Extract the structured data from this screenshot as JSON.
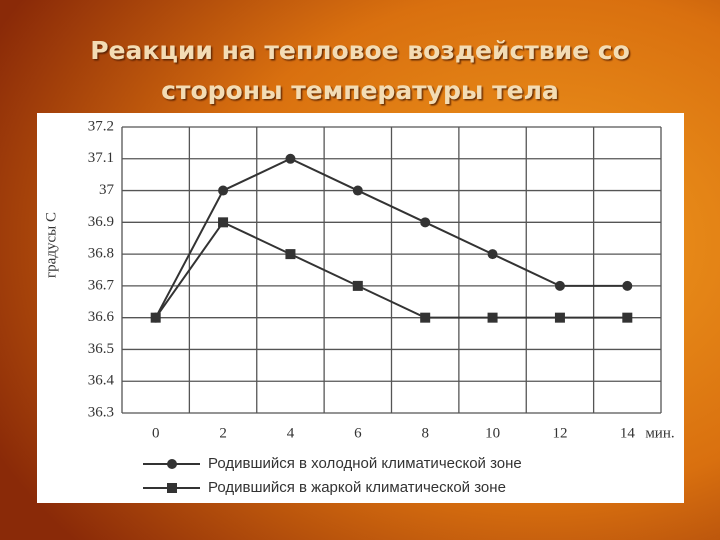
{
  "chart_data": {
    "type": "line",
    "title_lines": [
      "Реакции на тепловое воздействие со",
      "стороны температуры тела"
    ],
    "y_label": "градусы С",
    "x_unit": "мин.",
    "x": [
      0,
      2,
      4,
      6,
      8,
      10,
      12,
      14
    ],
    "series": [
      {
        "name": "Родившийся в холодной климатической зоне",
        "color": "#333333",
        "marker": "circle",
        "values": [
          36.6,
          37,
          37.1,
          37,
          36.9,
          36.8,
          36.7,
          36.7
        ]
      },
      {
        "name": "Родившийся в жаркой климатической зоне",
        "color": "#333333",
        "marker": "square",
        "values": [
          36.6,
          36.9,
          36.8,
          36.7,
          36.6,
          36.6,
          36.6,
          36.6
        ]
      }
    ],
    "xlim": [
      -1,
      15
    ],
    "xticks": [
      0,
      2,
      4,
      6,
      8,
      10,
      12,
      14
    ],
    "ylim": [
      36.3,
      37.2
    ],
    "yticks": [
      36.3,
      36.4,
      36.5,
      36.6,
      36.7,
      36.8,
      36.9,
      37,
      37.1,
      37.2
    ],
    "grid": true
  }
}
